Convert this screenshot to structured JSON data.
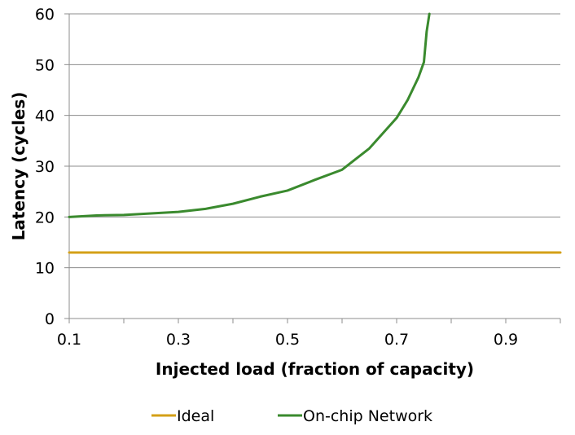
{
  "chart_data": {
    "type": "line",
    "title": "",
    "xlabel": "Injected load (fraction of capacity)",
    "ylabel": "Latency (cycles)",
    "xlim": [
      0.1,
      1.0
    ],
    "ylim": [
      0,
      60
    ],
    "x_ticks": [
      0.1,
      0.3,
      0.5,
      0.7,
      0.9
    ],
    "x_tick_labels": [
      "0.1",
      "0.3",
      "0.5",
      "0.7",
      "0.9"
    ],
    "y_ticks": [
      0,
      10,
      20,
      30,
      40,
      50,
      60
    ],
    "y_tick_labels": [
      "0",
      "10",
      "20",
      "30",
      "40",
      "50",
      "60"
    ],
    "grid": "horizontal",
    "legend_position": "bottom",
    "series": [
      {
        "name": "Ideal",
        "color": "#D4A017",
        "x": [
          0.1,
          1.0
        ],
        "y": [
          13,
          13
        ]
      },
      {
        "name": "On-chip Network",
        "color": "#3A8A2E",
        "x": [
          0.1,
          0.15,
          0.2,
          0.25,
          0.3,
          0.35,
          0.4,
          0.45,
          0.5,
          0.55,
          0.6,
          0.65,
          0.7,
          0.72,
          0.74,
          0.75,
          0.755,
          0.76
        ],
        "y": [
          20,
          20.3,
          20.4,
          20.7,
          21,
          21.6,
          22.6,
          24,
          25.2,
          27.3,
          29.3,
          33.5,
          39.5,
          43,
          47.5,
          50.5,
          56.5,
          60
        ]
      }
    ]
  }
}
